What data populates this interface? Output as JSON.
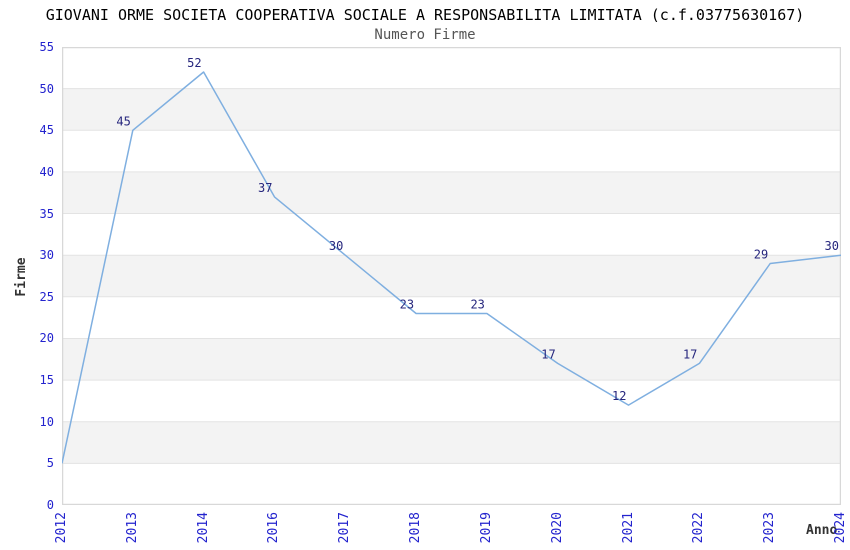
{
  "chart_data": {
    "type": "line",
    "title": "GIOVANI ORME SOCIETA COOPERATIVA SOCIALE A RESPONSABILITA LIMITATA (c.f.03775630167)",
    "subtitle": "Numero Firme",
    "xlabel": "Anno",
    "ylabel": "Firme",
    "categories": [
      "2012",
      "2013",
      "2014",
      "2016",
      "2017",
      "2018",
      "2019",
      "2020",
      "2021",
      "2022",
      "2023",
      "2024"
    ],
    "values": [
      5,
      45,
      52,
      37,
      30,
      23,
      23,
      17,
      12,
      17,
      29,
      30
    ],
    "ylim": [
      0,
      55
    ],
    "yticks": [
      0,
      5,
      10,
      15,
      20,
      25,
      30,
      35,
      40,
      45,
      50,
      55
    ],
    "grid": "horizontal alternating bands every 5 units",
    "legend_position": "none",
    "point_labels_visible": true,
    "first_point_label_rotated": true,
    "colors": {
      "line": "#7FAFE0",
      "point_label": "#26267D",
      "tick_label": "#2323CE",
      "band": "#F3F3F3",
      "gridline": "#E3E3E3",
      "plot_border": "#D8D8D8",
      "title": "#000000",
      "subtitle": "#555555",
      "axis_label": "#333333",
      "background": "#FFFFFF"
    }
  }
}
